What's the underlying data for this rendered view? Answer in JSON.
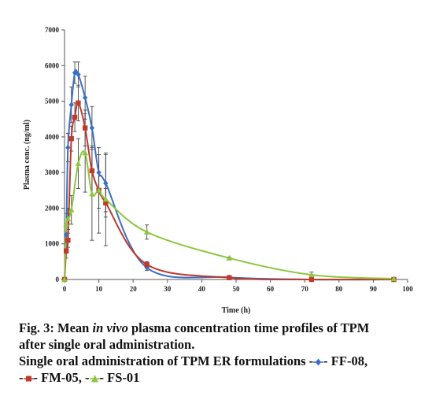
{
  "chart_data": {
    "type": "line",
    "title": "",
    "xlabel": "Time (h)",
    "ylabel": "Plasma conc. (ng/ml)",
    "xlim": [
      0,
      100
    ],
    "ylim": [
      0,
      7000
    ],
    "x_ticks": [
      0,
      10,
      20,
      30,
      40,
      50,
      60,
      70,
      80,
      90,
      100
    ],
    "y_ticks": [
      0,
      1000,
      2000,
      3000,
      4000,
      5000,
      6000,
      7000
    ],
    "grid": false,
    "series": [
      {
        "name": "FF-08",
        "color": "#3a6fc4",
        "marker": "diamond",
        "points": [
          {
            "x": 0,
            "y": 0,
            "err": 0
          },
          {
            "x": 0.5,
            "y": 1250,
            "err": 300
          },
          {
            "x": 1,
            "y": 3700,
            "err": 400
          },
          {
            "x": 2,
            "y": 4900,
            "err": 500
          },
          {
            "x": 3,
            "y": 5800,
            "err": 300
          },
          {
            "x": 4,
            "y": 5750,
            "err": 350
          },
          {
            "x": 6,
            "y": 5100,
            "err": 600
          },
          {
            "x": 8,
            "y": 4250,
            "err": 600
          },
          {
            "x": 10,
            "y": 3000,
            "err": 500
          },
          {
            "x": 12,
            "y": 2700,
            "err": 800
          },
          {
            "x": 24,
            "y": 330,
            "err": 80
          },
          {
            "x": 48,
            "y": 60,
            "err": 20
          },
          {
            "x": 72,
            "y": 0,
            "err": 0
          },
          {
            "x": 96,
            "y": 0,
            "err": 0
          }
        ]
      },
      {
        "name": "FM-05",
        "color": "#c0392b",
        "marker": "square",
        "points": [
          {
            "x": 0,
            "y": 0,
            "err": 0
          },
          {
            "x": 0.5,
            "y": 800,
            "err": 200
          },
          {
            "x": 1,
            "y": 1100,
            "err": 200
          },
          {
            "x": 2,
            "y": 3950,
            "err": 350
          },
          {
            "x": 3,
            "y": 4550,
            "err": 400
          },
          {
            "x": 4,
            "y": 4950,
            "err": 500
          },
          {
            "x": 6,
            "y": 4250,
            "err": 500
          },
          {
            "x": 8,
            "y": 3050,
            "err": 700
          },
          {
            "x": 10,
            "y": 2500,
            "err": 500
          },
          {
            "x": 12,
            "y": 2150,
            "err": 400
          },
          {
            "x": 24,
            "y": 420,
            "err": 80
          },
          {
            "x": 48,
            "y": 50,
            "err": 20
          },
          {
            "x": 72,
            "y": 0,
            "err": 0
          },
          {
            "x": 96,
            "y": 0,
            "err": 0
          }
        ]
      },
      {
        "name": "FS-01",
        "color": "#8dc63f",
        "marker": "triangle",
        "points": [
          {
            "x": 0,
            "y": 0,
            "err": 0
          },
          {
            "x": 0.5,
            "y": 1550,
            "err": 300
          },
          {
            "x": 1,
            "y": 1700,
            "err": 300
          },
          {
            "x": 2,
            "y": 1950,
            "err": 400
          },
          {
            "x": 4,
            "y": 3250,
            "err": 700
          },
          {
            "x": 6,
            "y": 3550,
            "err": 1100
          },
          {
            "x": 8,
            "y": 2400,
            "err": 1300
          },
          {
            "x": 10,
            "y": 2500,
            "err": 1200
          },
          {
            "x": 12,
            "y": 2250,
            "err": 1300
          },
          {
            "x": 24,
            "y": 1330,
            "err": 200
          },
          {
            "x": 48,
            "y": 600,
            "err": 30
          },
          {
            "x": 72,
            "y": 130,
            "err": 80
          },
          {
            "x": 96,
            "y": 20,
            "err": 10
          }
        ]
      }
    ]
  },
  "caption": {
    "fig_label": "Fig. 3: Mean ",
    "fig_italic": "in vivo",
    "fig_rest": " plasma concentration time profiles of TPM",
    "line2": "after single oral administration.",
    "line3": "Single oral administration of TPM ER formulations",
    "legend": [
      {
        "label": "FF-08,",
        "color": "#3a6fc4",
        "marker": "diamond"
      },
      {
        "label": "FM-05,",
        "color": "#c0392b",
        "marker": "square"
      },
      {
        "label": "FS-01",
        "color": "#8dc63f",
        "marker": "triangle"
      }
    ]
  }
}
